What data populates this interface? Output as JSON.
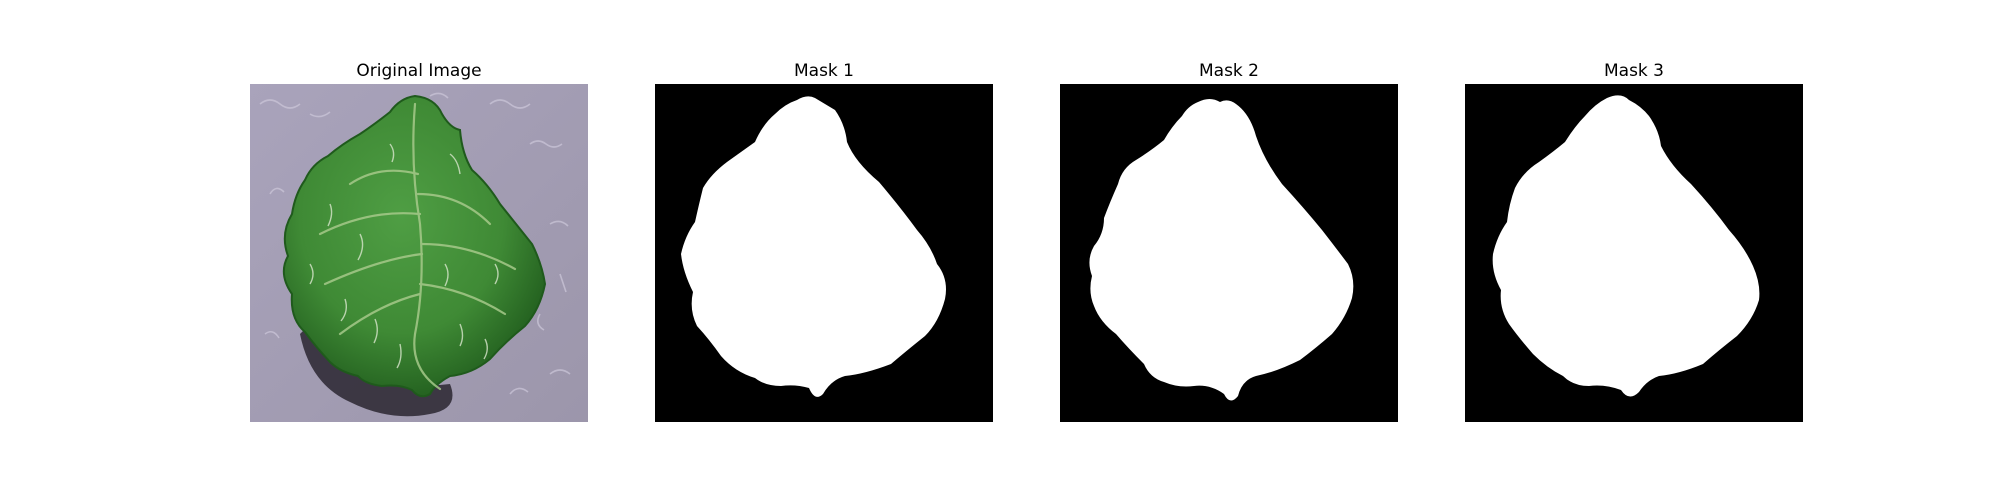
{
  "figure": {
    "panels": [
      {
        "title": "Original Image",
        "content": "photo",
        "icon": "leaf-photo"
      },
      {
        "title": "Mask 1",
        "content": "mask",
        "icon": "leaf-mask",
        "foreground_color": "#ffffff",
        "background_color": "#000000"
      },
      {
        "title": "Mask 2",
        "content": "mask",
        "icon": "leaf-mask",
        "foreground_color": "#ffffff",
        "background_color": "#000000"
      },
      {
        "title": "Mask 3",
        "content": "mask",
        "icon": "leaf-mask",
        "foreground_color": "#ffffff",
        "background_color": "#000000"
      }
    ],
    "colors": {
      "leaf_green": "#3f8a35",
      "leaf_dark": "#1f5a1c",
      "backdrop_lavender": "#a8a2b8",
      "shadow": "#2a2630",
      "mask_foreground": "#ffffff",
      "mask_background": "#000000"
    }
  }
}
